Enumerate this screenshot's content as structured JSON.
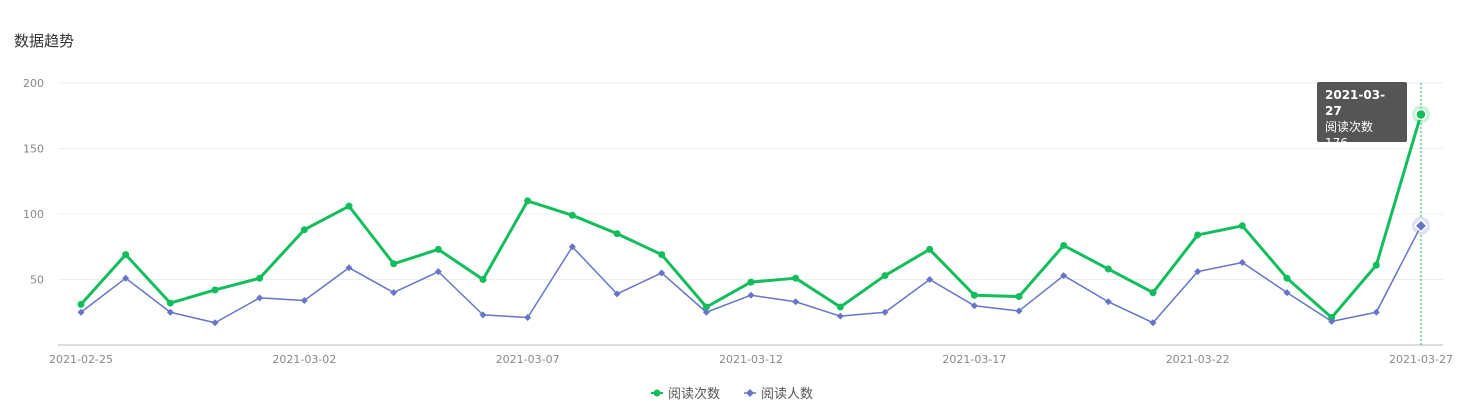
{
  "section_title": "数据趋势",
  "colors": {
    "reads": "#12be5c",
    "readers": "#6675c8",
    "grid": "#eeeeee",
    "axis": "#bbbbbb",
    "crosshair": "#12be5c"
  },
  "tooltip": {
    "date": "2021-03-27",
    "line1": "阅读次数 176",
    "line2": "阅读人数 91"
  },
  "chart_data": {
    "type": "line",
    "x": [
      "2021-02-25",
      "2021-02-26",
      "2021-02-27",
      "2021-02-28",
      "2021-03-01",
      "2021-03-02",
      "2021-03-03",
      "2021-03-04",
      "2021-03-05",
      "2021-03-06",
      "2021-03-07",
      "2021-03-08",
      "2021-03-09",
      "2021-03-10",
      "2021-03-11",
      "2021-03-12",
      "2021-03-13",
      "2021-03-14",
      "2021-03-15",
      "2021-03-16",
      "2021-03-17",
      "2021-03-18",
      "2021-03-19",
      "2021-03-20",
      "2021-03-21",
      "2021-03-22",
      "2021-03-23",
      "2021-03-24",
      "2021-03-25",
      "2021-03-26",
      "2021-03-27"
    ],
    "x_tick_labels": [
      "2021-02-25",
      "2021-03-02",
      "2021-03-07",
      "2021-03-12",
      "2021-03-17",
      "2021-03-22",
      "2021-03-27"
    ],
    "series": [
      {
        "name": "阅读次数",
        "values": [
          31,
          69,
          32,
          42,
          51,
          88,
          106,
          62,
          73,
          50,
          110,
          99,
          85,
          69,
          29,
          48,
          51,
          29,
          53,
          73,
          38,
          37,
          76,
          58,
          40,
          84,
          91,
          51,
          21,
          61,
          176
        ]
      },
      {
        "name": "阅读人数",
        "values": [
          25,
          51,
          25,
          17,
          36,
          34,
          59,
          40,
          56,
          23,
          21,
          75,
          39,
          55,
          25,
          38,
          33,
          22,
          25,
          50,
          30,
          26,
          53,
          33,
          17,
          56,
          63,
          40,
          18,
          25,
          91
        ]
      }
    ],
    "y_ticks": [
      50,
      100,
      150,
      200
    ],
    "ylim": [
      0,
      200
    ],
    "legend_position": "bottom-center",
    "highlight_date": "2021-03-27"
  }
}
